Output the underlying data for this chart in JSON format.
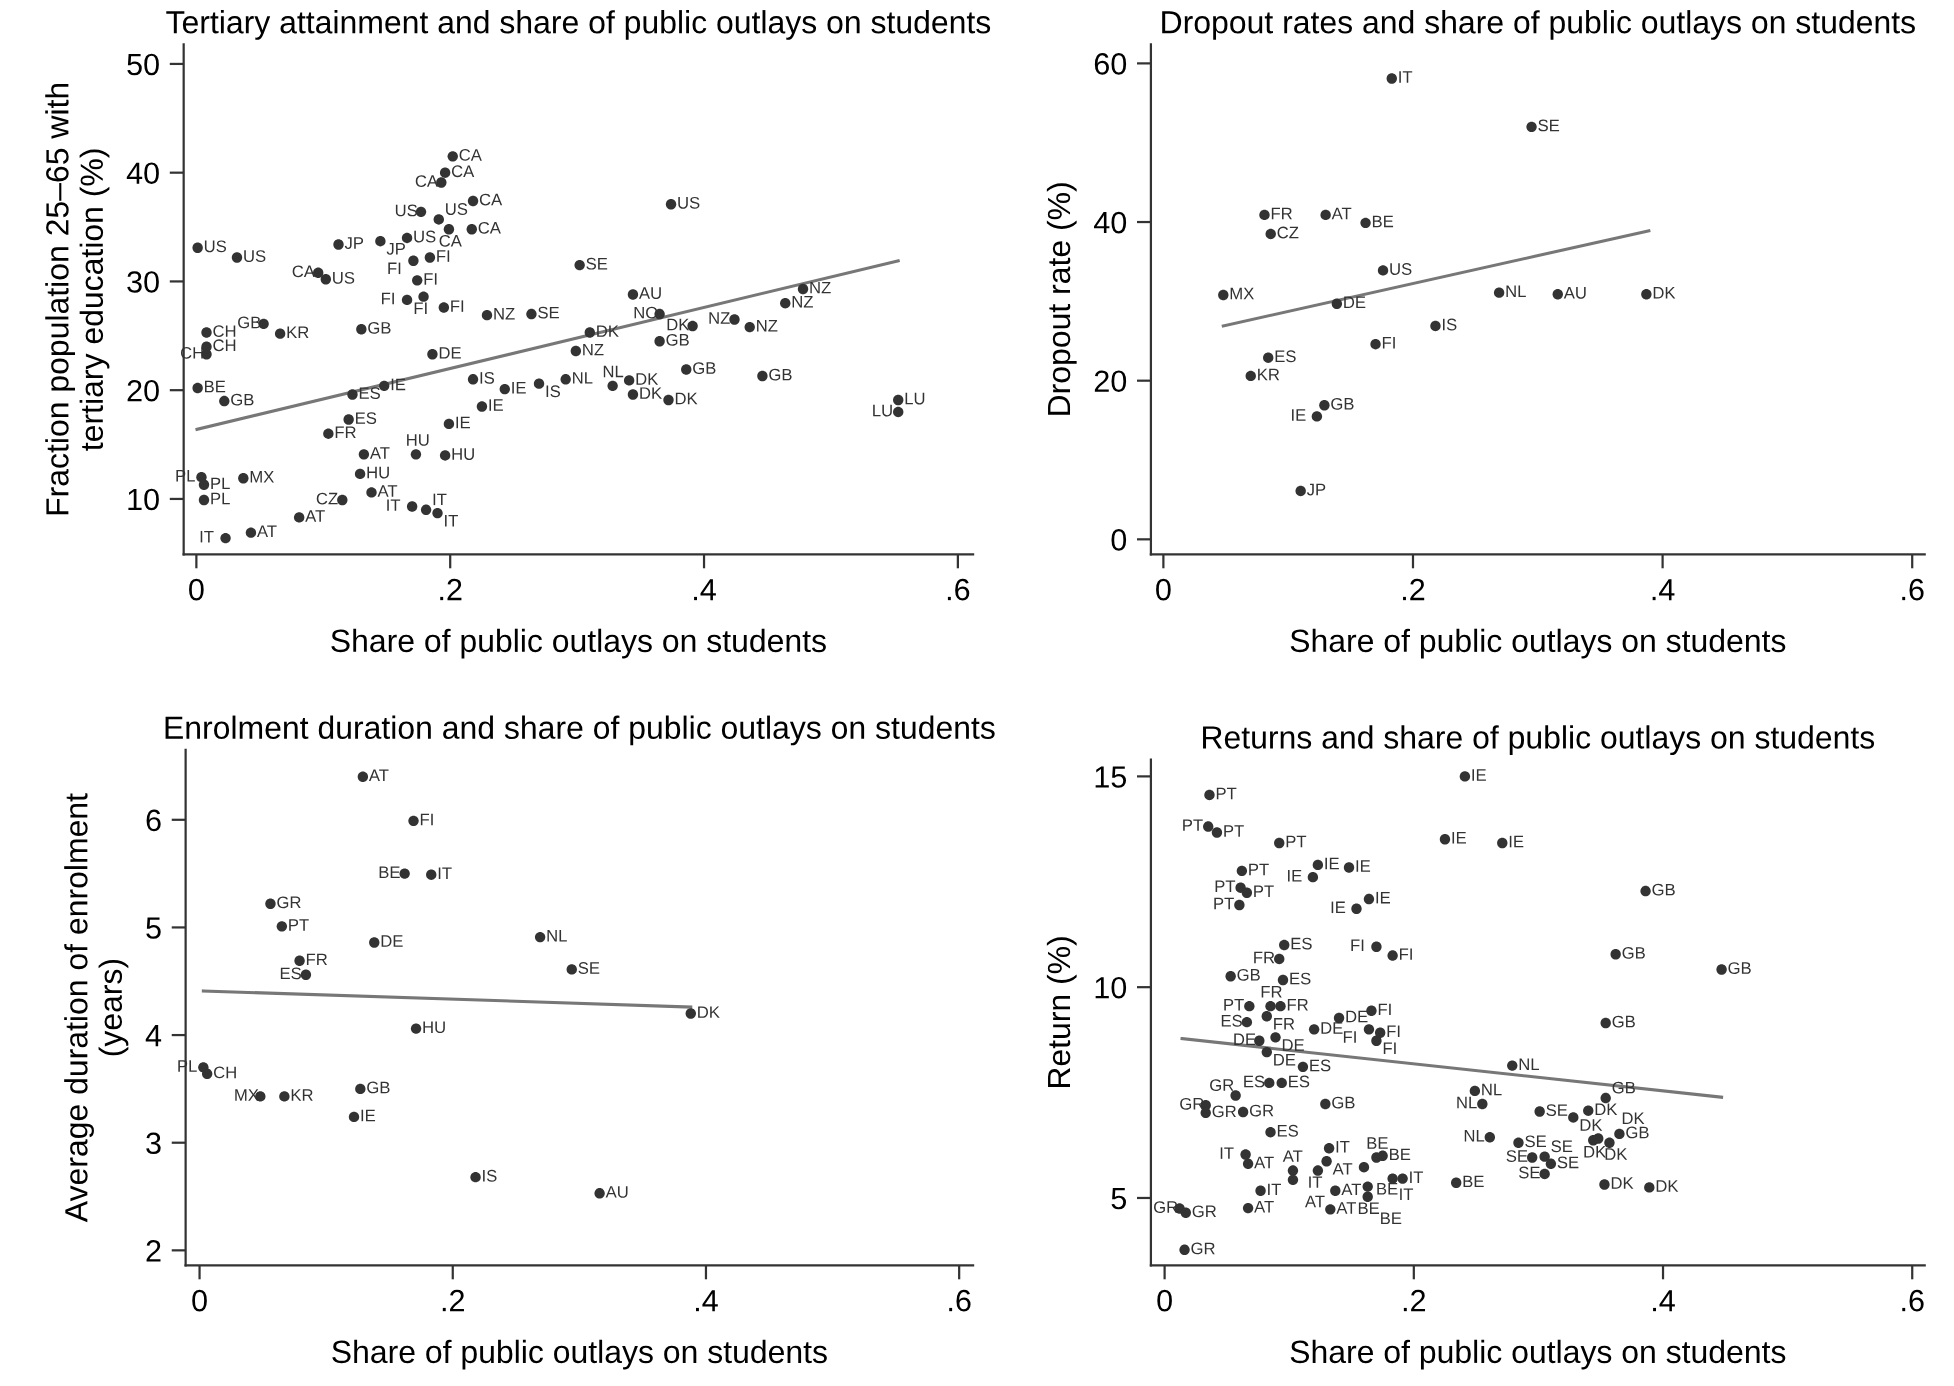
{
  "chart_data": [
    {
      "type": "scatter",
      "title": "Tertiary attainment and share of public outlays on students",
      "xlabel": "Share of public outlays on students",
      "ylabel": "Fraction population 25–65 with\ntertiary education (%)",
      "xlim": [
        -0.01,
        0.612
      ],
      "ylim": [
        4.9,
        51.8
      ],
      "xticks": [
        {
          "value": 0,
          "label": "0"
        },
        {
          "value": 0.2,
          "label": ".2"
        },
        {
          "value": 0.4,
          "label": ".4"
        },
        {
          "value": 0.6,
          "label": ".6"
        }
      ],
      "yticks": [
        10,
        20,
        30,
        40,
        50
      ],
      "marker": "circle",
      "grid": false,
      "series": [
        {
          "color": "#333333",
          "x": [
            0.202,
            0.196,
            0.193,
            0.218,
            0.177,
            0.191,
            0.199,
            0.217,
            0.001,
            0.032,
            0.112,
            0.145,
            0.166,
            0.184,
            0.096,
            0.102,
            0.171,
            0.174,
            0.179,
            0.166,
            0.195,
            0.229,
            0.264,
            0.13,
            0.053,
            0.066,
            0.008,
            0.008,
            0.008,
            0.148,
            0.199,
            0.218,
            0.243,
            0.27,
            0.001,
            0.022,
            0.123,
            0.225,
            0.132,
            0.173,
            0.196,
            0.129,
            0.004,
            0.006,
            0.006,
            0.037,
            0.138,
            0.17,
            0.181,
            0.19,
            0.023,
            0.043,
            0.081,
            0.115,
            0.186,
            0.104,
            0.12,
            0.374,
            0.302,
            0.478,
            0.464,
            0.424,
            0.436,
            0.391,
            0.31,
            0.299,
            0.446,
            0.386,
            0.341,
            0.344,
            0.372,
            0.291,
            0.328,
            0.553,
            0.553,
            0.344,
            0.365,
            0.365
          ],
          "values": [
            41.5,
            40.0,
            39.1,
            37.4,
            36.4,
            35.7,
            34.8,
            34.8,
            33.1,
            32.2,
            33.4,
            33.7,
            34.0,
            32.2,
            30.8,
            30.2,
            31.9,
            30.1,
            28.6,
            28.3,
            27.6,
            26.9,
            27.0,
            25.6,
            26.1,
            25.2,
            25.3,
            24.0,
            23.3,
            20.4,
            16.9,
            21.0,
            20.1,
            20.6,
            20.2,
            19.0,
            19.6,
            18.5,
            14.1,
            14.1,
            14.0,
            12.3,
            12.0,
            11.3,
            9.9,
            11.9,
            10.6,
            9.3,
            9.0,
            8.7,
            6.4,
            6.9,
            8.3,
            9.9,
            23.3,
            16.0,
            17.3,
            37.1,
            31.5,
            29.3,
            28.0,
            26.5,
            25.8,
            25.9,
            25.3,
            23.6,
            21.3,
            21.9,
            20.9,
            19.6,
            19.1,
            21.0,
            20.4,
            19.1,
            18.0,
            28.8,
            27.0,
            24.5
          ],
          "value_labels": [
            "CA",
            "CA",
            "CA",
            "CA",
            "US",
            "US",
            "CA",
            "CA",
            "US",
            "US",
            "JP",
            "JP",
            "US",
            "FI",
            "CA",
            "US",
            "FI",
            "FI",
            "FI",
            "FI",
            "FI",
            "NZ",
            "SE",
            "GB",
            "GB",
            "KR",
            "CH",
            "CH",
            "CH",
            "IE",
            "IE",
            "IS",
            "IE",
            "IS",
            "BE",
            "GB",
            "ES",
            "IE",
            "AT",
            "HU",
            "HU",
            "HU",
            "PL",
            "PL",
            "PL",
            "MX",
            "AT",
            "IT",
            "IT",
            "IT",
            "IT",
            "AT",
            "AT",
            "CZ",
            "DE",
            "FR",
            "ES",
            "US",
            "SE",
            "NZ",
            "NZ",
            "NZ",
            "NZ",
            "DK",
            "DK",
            "NZ",
            "GB",
            "GB",
            "DK",
            "DK",
            "DK",
            "NL",
            "NL",
            "LU",
            "LU",
            "AU",
            "NO",
            "GB"
          ]
        },
        {
          "type": "line",
          "marker": "none",
          "color": "#777777",
          "x": [
            0.0005,
            0.553
          ],
          "values": [
            16.4,
            31.9
          ]
        }
      ]
    },
    {
      "type": "scatter",
      "title": "Dropout rates and share of public outlays on students",
      "xlabel": "Share of public outlays on students",
      "ylabel": "Dropout rate (%)",
      "xlim": [
        -0.01,
        0.61
      ],
      "ylim": [
        -1.9,
        62.4
      ],
      "xticks": [
        {
          "value": 0,
          "label": "0"
        },
        {
          "value": 0.2,
          "label": ".2"
        },
        {
          "value": 0.4,
          "label": ".4"
        },
        {
          "value": 0.6,
          "label": ".6"
        }
      ],
      "yticks": [
        0,
        20,
        40,
        60
      ],
      "marker": "circle",
      "grid": false,
      "series": [
        {
          "color": "#333333",
          "x": [
            0.183,
            0.295,
            0.081,
            0.13,
            0.162,
            0.086,
            0.176,
            0.048,
            0.269,
            0.316,
            0.387,
            0.139,
            0.218,
            0.17,
            0.084,
            0.07,
            0.129,
            0.123,
            0.11
          ],
          "values": [
            58.1,
            52.0,
            40.9,
            40.9,
            39.9,
            38.5,
            33.9,
            30.8,
            31.1,
            30.9,
            30.9,
            29.7,
            26.9,
            24.6,
            22.9,
            20.6,
            16.9,
            15.5,
            6.1
          ],
          "value_labels": [
            "IT",
            "SE",
            "FR",
            "AT",
            "BE",
            "CZ",
            "US",
            "MX",
            "NL",
            "AU",
            "DK",
            "DE",
            "IS",
            "FI",
            "ES",
            "KR",
            "GB",
            "IE",
            "JP"
          ]
        },
        {
          "type": "line",
          "marker": "none",
          "color": "#777777",
          "x": [
            0.048,
            0.389
          ],
          "values": [
            26.9,
            38.9
          ]
        }
      ]
    },
    {
      "type": "scatter",
      "title": "Enrolment duration and share of public outlays on students",
      "xlabel": "Share of public outlays on students",
      "ylabel": "Average duration of enrolment\n(years)",
      "xlim": [
        -0.011,
        0.611
      ],
      "ylim": [
        1.86,
        6.65
      ],
      "xticks": [
        {
          "value": 0,
          "label": "0"
        },
        {
          "value": 0.2,
          "label": ".2"
        },
        {
          "value": 0.4,
          "label": ".4"
        },
        {
          "value": 0.6,
          "label": ".6"
        }
      ],
      "yticks": [
        2,
        3,
        4,
        5,
        6
      ],
      "marker": "circle",
      "grid": false,
      "series": [
        {
          "color": "#333333",
          "x": [
            0.129,
            0.169,
            0.162,
            0.183,
            0.056,
            0.065,
            0.138,
            0.269,
            0.079,
            0.084,
            0.294,
            0.388,
            0.171,
            0.003,
            0.006,
            0.048,
            0.067,
            0.127,
            0.122,
            0.218,
            0.316
          ],
          "values": [
            6.4,
            5.99,
            5.5,
            5.49,
            5.22,
            5.01,
            4.86,
            4.91,
            4.69,
            4.56,
            4.61,
            4.2,
            4.06,
            3.7,
            3.64,
            3.43,
            3.43,
            3.5,
            3.24,
            2.68,
            2.53
          ],
          "value_labels": [
            "AT",
            "FI",
            "BE",
            "IT",
            "GR",
            "PT",
            "DE",
            "NL",
            "FR",
            "ES",
            "SE",
            "DK",
            "HU",
            "PL",
            "CH",
            "MX",
            "KR",
            "GB",
            "IE",
            "IS",
            "AU"
          ]
        },
        {
          "type": "line",
          "marker": "none",
          "color": "#777777",
          "x": [
            0.003,
            0.388
          ],
          "values": [
            4.41,
            4.26
          ]
        }
      ]
    },
    {
      "type": "scatter",
      "title": "Returns and share of public outlays on students",
      "xlabel": "Share of public outlays on students",
      "ylabel": "Return (%)",
      "xlim": [
        -0.011,
        0.61
      ],
      "ylim": [
        3.4,
        15.4
      ],
      "xticks": [
        {
          "value": 0,
          "label": "0"
        },
        {
          "value": 0.2,
          "label": ".2"
        },
        {
          "value": 0.4,
          "label": ".4"
        },
        {
          "value": 0.6,
          "label": ".6"
        }
      ],
      "yticks": [
        5,
        10,
        15
      ],
      "marker": "circle",
      "grid": false,
      "series": [
        {
          "color": "#333333",
          "x": [
            0.241,
            0.036,
            0.035,
            0.042,
            0.092,
            0.225,
            0.271,
            0.062,
            0.123,
            0.148,
            0.119,
            0.061,
            0.066,
            0.06,
            0.164,
            0.154,
            0.386,
            0.096,
            0.17,
            0.183,
            0.092,
            0.362,
            0.447,
            0.053,
            0.095,
            0.068,
            0.085,
            0.093,
            0.066,
            0.082,
            0.14,
            0.166,
            0.354,
            0.12,
            0.164,
            0.173,
            0.17,
            0.076,
            0.089,
            0.082,
            0.279,
            0.111,
            0.084,
            0.094,
            0.057,
            0.249,
            0.255,
            0.129,
            0.033,
            0.033,
            0.063,
            0.301,
            0.34,
            0.328,
            0.354,
            0.085,
            0.261,
            0.284,
            0.344,
            0.348,
            0.365,
            0.357,
            0.065,
            0.132,
            0.17,
            0.175,
            0.067,
            0.103,
            0.13,
            0.16,
            0.295,
            0.31,
            0.305,
            0.305,
            0.123,
            0.183,
            0.191,
            0.234,
            0.353,
            0.389,
            0.077,
            0.137,
            0.163,
            0.163,
            0.103,
            0.067,
            0.133,
            0.012,
            0.017,
            0.016
          ],
          "values": [
            15.0,
            14.56,
            13.81,
            13.67,
            13.42,
            13.51,
            13.42,
            12.76,
            12.9,
            12.84,
            12.61,
            12.36,
            12.24,
            11.95,
            12.09,
            11.86,
            12.28,
            11.0,
            10.96,
            10.75,
            10.67,
            10.78,
            10.42,
            10.26,
            10.17,
            9.55,
            9.55,
            9.55,
            9.17,
            9.31,
            9.27,
            9.44,
            9.15,
            9.0,
            9.0,
            8.92,
            8.73,
            8.73,
            8.81,
            8.46,
            8.14,
            8.11,
            7.73,
            7.73,
            7.43,
            7.54,
            7.23,
            7.23,
            7.2,
            7.02,
            7.04,
            7.05,
            7.07,
            6.91,
            7.37,
            6.56,
            6.44,
            6.31,
            6.37,
            6.41,
            6.52,
            6.31,
            6.03,
            6.18,
            5.96,
            6.0,
            5.81,
            5.65,
            5.87,
            5.73,
            5.96,
            5.81,
            5.98,
            5.57,
            5.65,
            5.46,
            5.46,
            5.36,
            5.32,
            5.25,
            5.17,
            5.17,
            5.27,
            5.03,
            5.43,
            4.76,
            4.73,
            4.75,
            4.65,
            3.77
          ],
          "value_labels": [
            "IE",
            "PT",
            "PT",
            "PT",
            "PT",
            "IE",
            "IE",
            "PT",
            "IE",
            "IE",
            "IE",
            "PT",
            "PT",
            "PT",
            "IE",
            "IE",
            "GB",
            "ES",
            "FI",
            "FI",
            "FR",
            "GB",
            "GB",
            "GB",
            "ES",
            "PT",
            "FR",
            "FR",
            "ES",
            "FR",
            "DE",
            "FI",
            "GB",
            "DE",
            "FI",
            "FI",
            "FI",
            "DE",
            "DE",
            "DE",
            "NL",
            "ES",
            "ES",
            "ES",
            "GR",
            "NL",
            "NL",
            "GB",
            "GR",
            "GR",
            "GR",
            "SE",
            "DK",
            "DK",
            "GB",
            "ES",
            "NL",
            "SE",
            "DK",
            "DK",
            "GB",
            "DK",
            "IT",
            "IT",
            "BE",
            "BE",
            "AT",
            "AT",
            "AT",
            "BE",
            "SE",
            "SE",
            "SE",
            "SE",
            "IT",
            "IT",
            "IT",
            "BE",
            "DK",
            "DK",
            "IT",
            "AT",
            "BE",
            "BE",
            "AT",
            "AT",
            "AT",
            "GR",
            "GR",
            "GR"
          ]
        },
        {
          "type": "line",
          "marker": "none",
          "color": "#777777",
          "x": [
            0.014,
            0.447
          ],
          "values": [
            8.78,
            7.39
          ]
        }
      ]
    }
  ]
}
